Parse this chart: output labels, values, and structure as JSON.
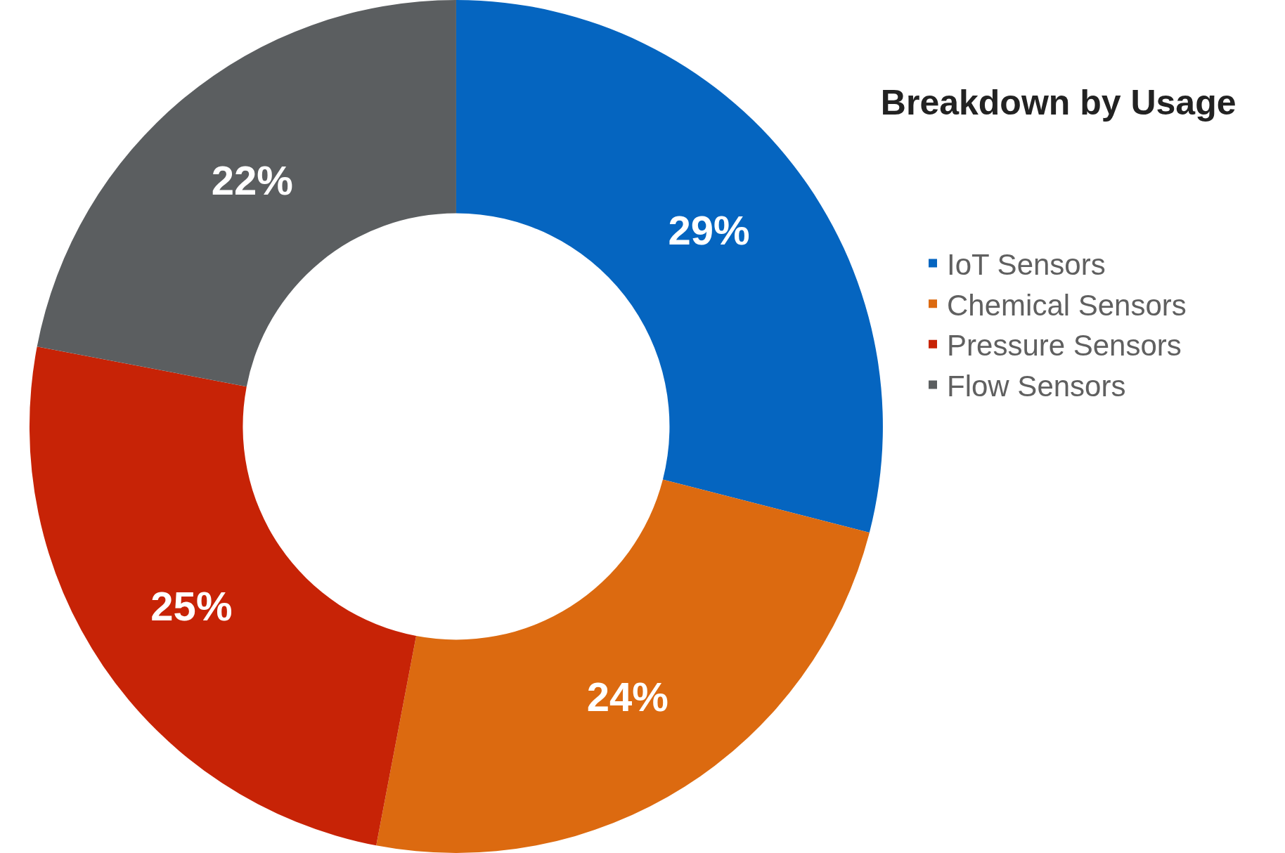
{
  "chart_data": {
    "type": "donut",
    "title": "Breakdown by Usage",
    "categories": [
      "IoT Sensors",
      "Chemical Sensors",
      "Pressure Sensors",
      "Flow Sensors"
    ],
    "values": [
      29,
      24,
      25,
      22
    ],
    "colors": [
      "#0565c0",
      "#dc6a10",
      "#c72306",
      "#5b5e60"
    ],
    "value_labels": [
      "29%",
      "24%",
      "25%",
      "22%"
    ],
    "legend": "right"
  }
}
